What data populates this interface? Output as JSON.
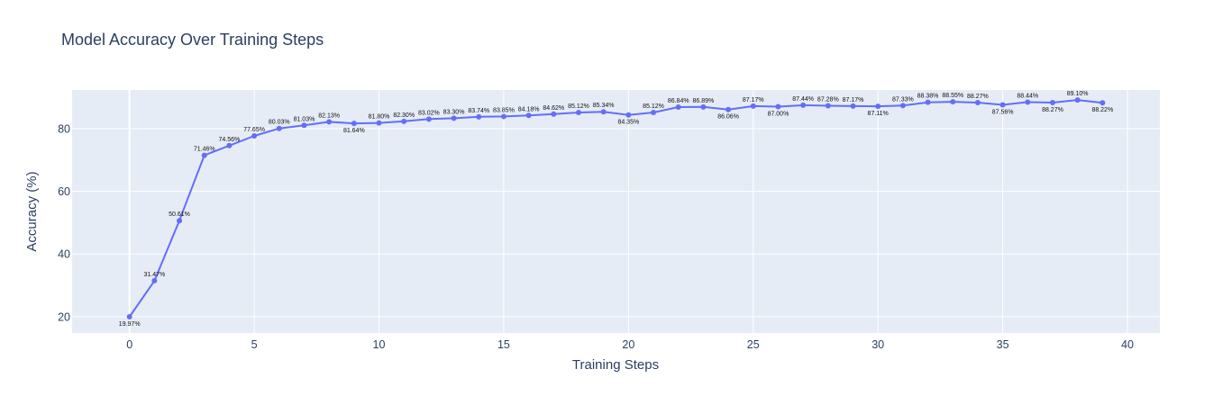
{
  "chart_data": {
    "type": "line",
    "title": "Model Accuracy Over Training Steps",
    "xlabel": "Training Steps",
    "ylabel": "Accuracy (%)",
    "xlim": [
      -2.3,
      41.3
    ],
    "ylim": [
      14.8,
      92.3
    ],
    "x_ticks": [
      0,
      5,
      10,
      15,
      20,
      25,
      30,
      35,
      40
    ],
    "y_ticks": [
      20,
      40,
      60,
      80
    ],
    "grid": true,
    "legend": "none",
    "colors": {
      "plot_bg": "#e5ecf6",
      "grid": "#ffffff",
      "line": "#636efa",
      "text": "#2a3f5f"
    },
    "series": [
      {
        "x": [
          0,
          1,
          2,
          3,
          4,
          5,
          6,
          7,
          8,
          9,
          10,
          11,
          12,
          13,
          14,
          15,
          16,
          17,
          18,
          19,
          20,
          21,
          22,
          23,
          24,
          25,
          26,
          27,
          28,
          29,
          30,
          31,
          32,
          33,
          34,
          35,
          36,
          37,
          38,
          39
        ],
        "values": [
          19.97,
          31.47,
          50.61,
          71.46,
          74.56,
          77.65,
          80.03,
          81.03,
          82.13,
          81.64,
          81.8,
          82.3,
          83.02,
          83.3,
          83.74,
          83.85,
          84.18,
          84.62,
          85.12,
          85.34,
          84.35,
          85.12,
          86.84,
          86.89,
          86.06,
          87.17,
          87.0,
          87.44,
          87.28,
          87.17,
          87.11,
          87.33,
          88.38,
          88.55,
          88.27,
          87.56,
          88.44,
          88.27,
          89.1,
          88.22
        ],
        "labels": [
          "19.97%",
          "31.47%",
          "50.61%",
          "71.46%",
          "74.56%",
          "77.65%",
          "80.03%",
          "81.03%",
          "82.13%",
          "81.64%",
          "81.80%",
          "82.30%",
          "83.02%",
          "83.30%",
          "83.74%",
          "83.85%",
          "84.18%",
          "84.62%",
          "85.12%",
          "85.34%",
          "84.35%",
          "85.12%",
          "86.84%",
          "86.89%",
          "86.06%",
          "87.17%",
          "87.00%",
          "87.44%",
          "87.28%",
          "87.17%",
          "87.11%",
          "87.33%",
          "88.38%",
          "88.55%",
          "88.27%",
          "87.56%",
          "88.44%",
          "88.27%",
          "89.10%",
          "88.22%"
        ]
      }
    ]
  }
}
